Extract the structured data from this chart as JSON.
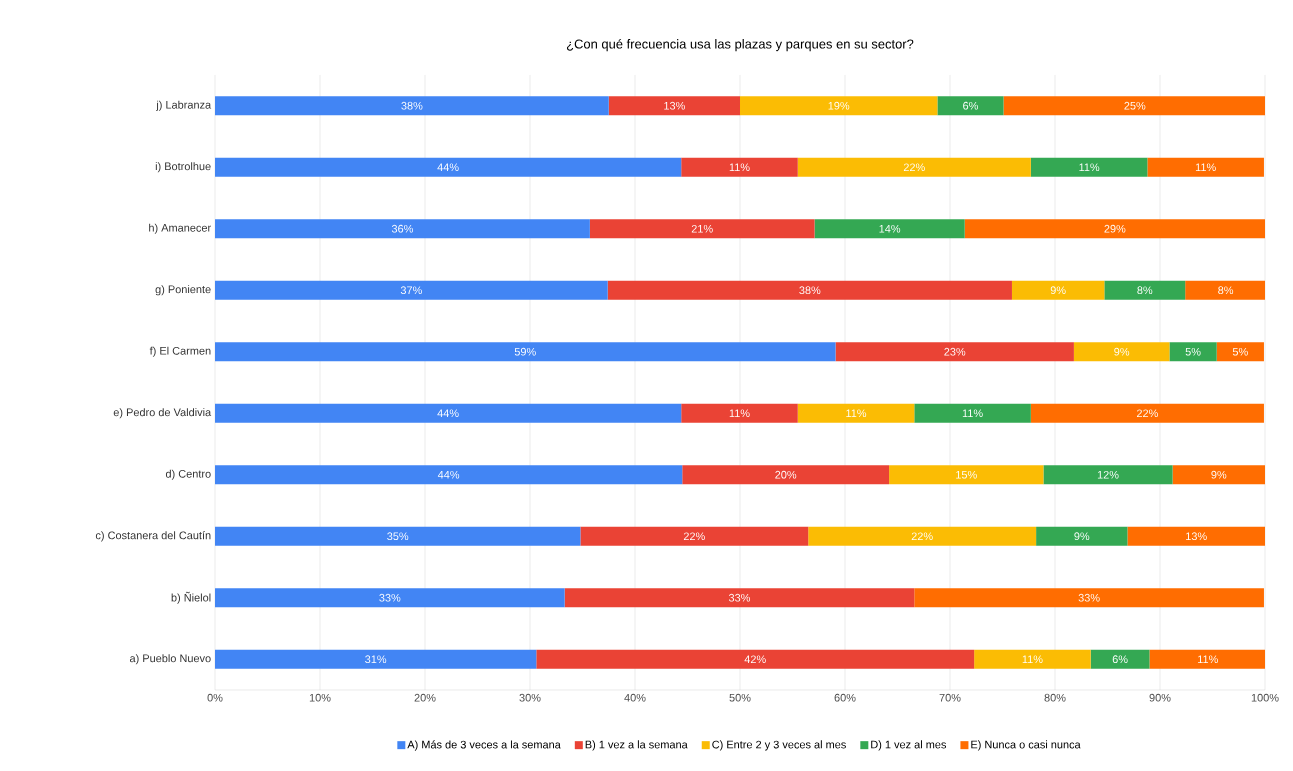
{
  "chart_data": {
    "type": "bar",
    "orientation": "horizontal",
    "stacked": true,
    "title": "¿Con qué frecuencia usa las plazas y parques en su sector?",
    "categories": [
      "j) Labranza",
      "i) Botrolhue",
      "h) Amanecer",
      "g) Poniente",
      "f) El Carmen",
      "e) Pedro de Valdivia",
      "d) Centro",
      "c) Costanera del Cautín",
      "b) Ñielol",
      "a) Pueblo Nuevo"
    ],
    "series": [
      {
        "name": "A) Más de 3 veces a la semana",
        "color": "#4285f4",
        "values": [
          37.5,
          44.4,
          35.7,
          37.4,
          59.1,
          44.4,
          44.5,
          34.8,
          33.3,
          30.6
        ],
        "value_labels": [
          "38%",
          "44%",
          "36%",
          "37%",
          "59%",
          "44%",
          "44%",
          "35%",
          "33%",
          "31%"
        ]
      },
      {
        "name": "B) 1 vez a la semana",
        "color": "#ea4335",
        "values": [
          12.5,
          11.1,
          21.4,
          38.5,
          22.7,
          11.1,
          19.7,
          21.7,
          33.3,
          41.7
        ],
        "value_labels": [
          "13%",
          "11%",
          "21%",
          "38%",
          "23%",
          "11%",
          "20%",
          "22%",
          "33%",
          "42%"
        ]
      },
      {
        "name": "C) Entre 2 y 3 veces al mes",
        "color": "#fbbc04",
        "values": [
          18.8,
          22.2,
          0,
          8.8,
          9.1,
          11.1,
          14.7,
          21.7,
          0,
          11.1
        ],
        "value_labels": [
          "19%",
          "22%",
          null,
          "9%",
          "9%",
          "11%",
          "15%",
          "22%",
          null,
          "11%"
        ]
      },
      {
        "name": "D) 1 vez al mes",
        "color": "#34a853",
        "values": [
          6.3,
          11.1,
          14.3,
          7.7,
          4.5,
          11.1,
          12.3,
          8.7,
          0,
          5.6
        ],
        "value_labels": [
          "6%",
          "11%",
          "14%",
          "8%",
          "5%",
          "11%",
          "12%",
          "9%",
          null,
          "6%"
        ]
      },
      {
        "name": "E) Nunca o casi nunca",
        "color": "#ff6d01",
        "values": [
          25,
          11.1,
          28.6,
          7.7,
          4.5,
          22.2,
          8.8,
          13.1,
          33.3,
          11.1
        ],
        "value_labels": [
          "25%",
          "11%",
          "29%",
          "8%",
          "5%",
          "22%",
          "9%",
          "13%",
          "33%",
          "11%"
        ]
      }
    ],
    "xlim": [
      0,
      100
    ],
    "xticks": [
      {
        "value": 0,
        "label": "0%"
      },
      {
        "value": 10,
        "label": "10%"
      },
      {
        "value": 20,
        "label": "20%"
      },
      {
        "value": 30,
        "label": "30%"
      },
      {
        "value": 40,
        "label": "40%"
      },
      {
        "value": 50,
        "label": "50%"
      },
      {
        "value": 60,
        "label": "60%"
      },
      {
        "value": 70,
        "label": "70%"
      },
      {
        "value": 80,
        "label": "80%"
      },
      {
        "value": 90,
        "label": "90%"
      },
      {
        "value": 100,
        "label": "100%"
      }
    ],
    "grid": "x",
    "legend": "bottom"
  }
}
